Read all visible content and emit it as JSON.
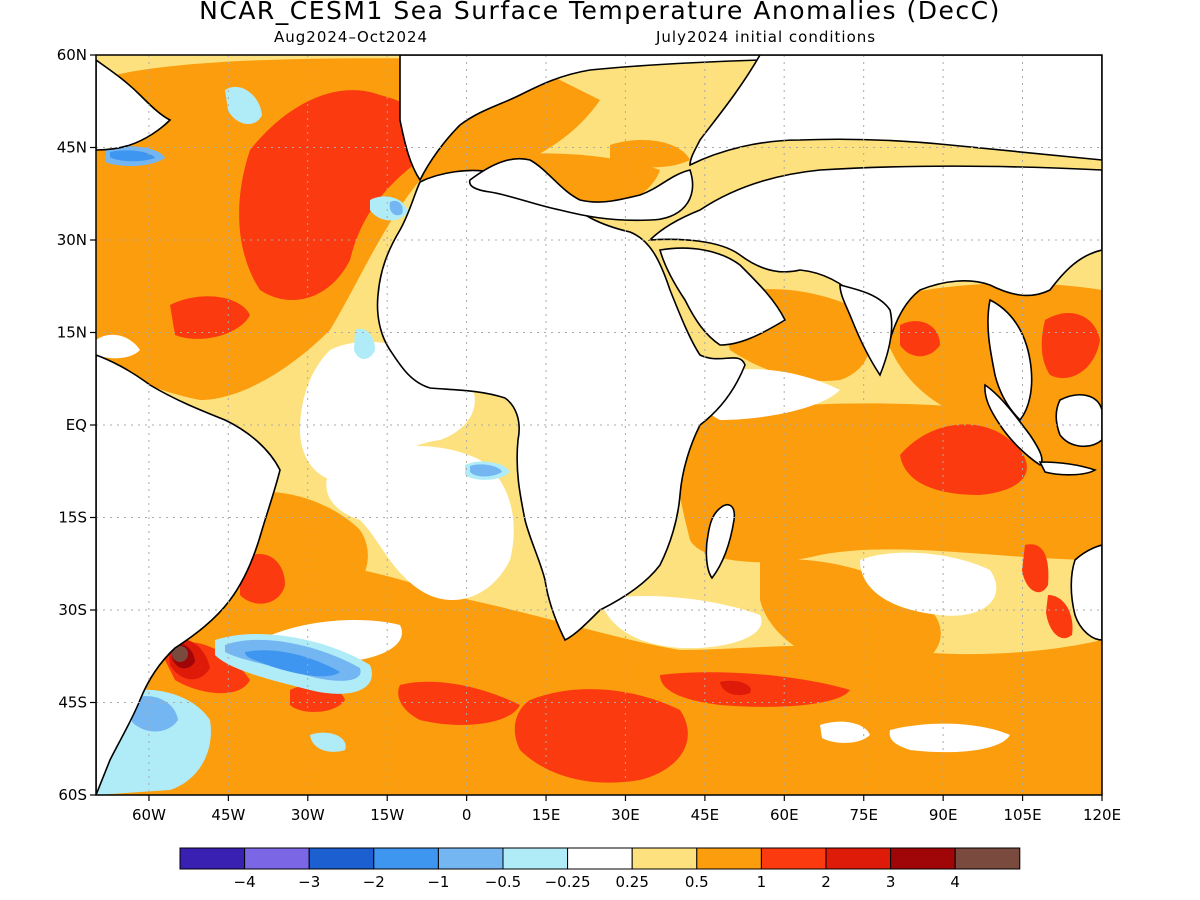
{
  "title": "NCAR_CESM1 Sea Surface Temperature Anomalies (DecC)",
  "subtitle_left": "Aug2024–Oct2024",
  "subtitle_right": "July2024 initial conditions",
  "map": {
    "lon_range": [
      -70,
      120
    ],
    "lat_range": [
      -60,
      60
    ],
    "grid": true,
    "lat_labels": [
      "60N",
      "45N",
      "30N",
      "15N",
      "EQ",
      "15S",
      "30S",
      "45S",
      "60S"
    ],
    "lat_values": [
      60,
      45,
      30,
      15,
      0,
      -15,
      -30,
      -45,
      -60
    ],
    "lon_labels": [
      "60W",
      "45W",
      "30W",
      "15W",
      "0",
      "15E",
      "30E",
      "45E",
      "60E",
      "75E",
      "90E",
      "105E",
      "120E"
    ],
    "lon_values": [
      -60,
      -45,
      -30,
      -15,
      0,
      15,
      30,
      45,
      60,
      75,
      90,
      105,
      120
    ]
  },
  "colorbar": {
    "colors": [
      "#3a1fb3",
      "#7b67e6",
      "#1b5fd1",
      "#3f96f0",
      "#74b6f2",
      "#b0ecf8",
      "#ffffff",
      "#fde17e",
      "#fb9d0c",
      "#fb3a10",
      "#de1a08",
      "#a00608",
      "#7a4a3e"
    ],
    "labels": [
      "−4",
      "−3",
      "−2",
      "−1",
      "−0.5",
      "−0.25",
      "0.25",
      "0.5",
      "1",
      "2",
      "3",
      "4"
    ]
  }
}
